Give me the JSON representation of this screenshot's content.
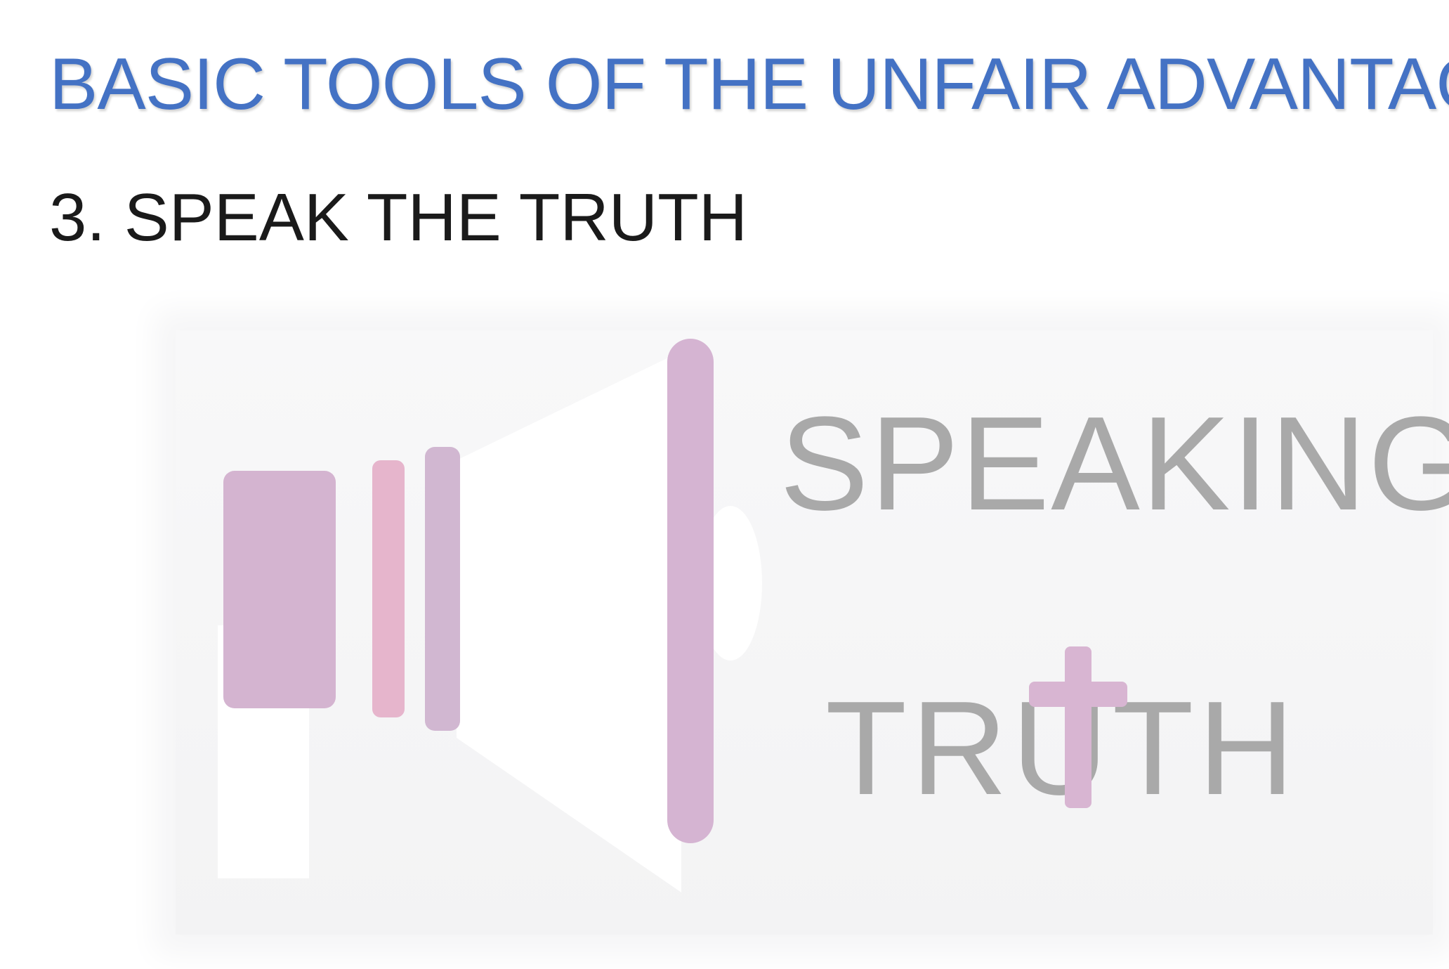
{
  "slide": {
    "title": "BASIC TOOLS OF THE UNFAIR ADVANTAGE",
    "subtitle": "3. SPEAK THE TRUTH"
  },
  "graphic": {
    "word_top": "SPEAKING",
    "word_bottom": "TRUTH",
    "icons": [
      "megaphone-icon",
      "heart-icon",
      "cross-icon"
    ]
  },
  "colors": {
    "title": "#4472c4",
    "subtitle": "#1a1a1a",
    "graphic_text": "#a9a9a9",
    "megaphone_purple": "#d4b4d0",
    "megaphone_pink": "#e6b5cc",
    "heart_pink": "#f2e2ec",
    "cross_purple": "#d8b5d2"
  }
}
